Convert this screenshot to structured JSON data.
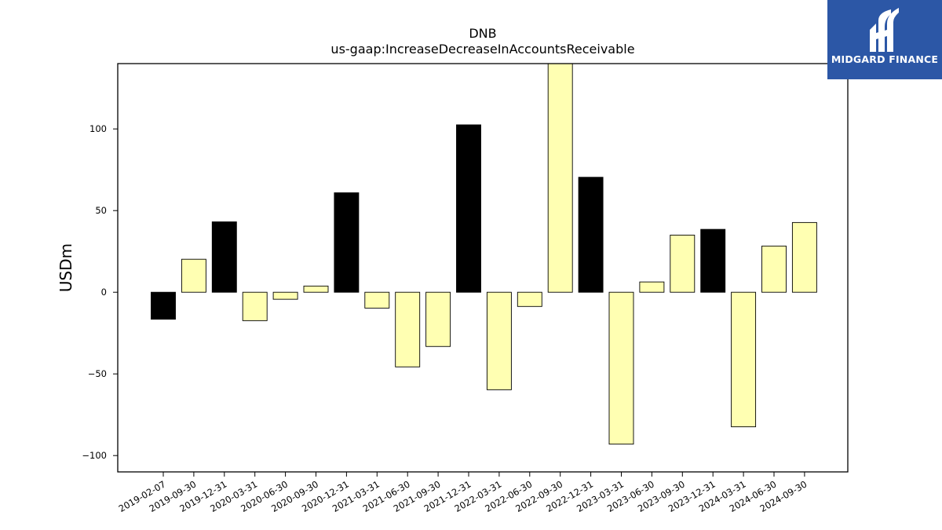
{
  "colors": {
    "positive_highlight": "#000000",
    "regular": "#ffffb2",
    "bar_edge": "#000000",
    "logo_background": "#2c57a6",
    "logo_foreground": "#ffffff"
  },
  "logo": {
    "icon": "midgard-logo-icon",
    "text": "MIDGARD FINANCE"
  },
  "chart_data": {
    "type": "bar",
    "title": "DNB",
    "subtitle": "us-gaap:IncreaseDecreaseInAccountsReceivable",
    "xlabel": "",
    "ylabel": "USDm",
    "ylim": [
      -110,
      140
    ],
    "yticks": [
      -100,
      -50,
      0,
      50,
      100
    ],
    "ytick_labels": [
      "−100",
      "−50",
      "0",
      "50",
      "100"
    ],
    "grid": false,
    "legend": "none",
    "categories": [
      "2019-02-07",
      "2019-09-30",
      "2019-12-31",
      "2020-03-31",
      "2020-06-30",
      "2020-09-30",
      "2020-12-31",
      "2021-03-31",
      "2021-06-30",
      "2021-09-30",
      "2021-12-31",
      "2022-03-31",
      "2022-06-30",
      "2022-09-30",
      "2022-12-31",
      "2023-03-31",
      "2023-06-30",
      "2023-09-30",
      "2023-12-31",
      "2024-03-31",
      "2024-06-30",
      "2024-09-30"
    ],
    "values": [
      -16.5,
      20.2,
      43.1,
      -17.4,
      -4.3,
      3.8,
      60.9,
      -9.7,
      -45.7,
      -33.2,
      102.5,
      -59.7,
      -8.7,
      140,
      70.4,
      -93,
      6.3,
      35,
      38.5,
      -82.4,
      28.3,
      42.7
    ],
    "highlighted": [
      true,
      false,
      true,
      false,
      false,
      false,
      true,
      false,
      false,
      false,
      true,
      false,
      false,
      false,
      true,
      false,
      false,
      false,
      true,
      false,
      false,
      false
    ]
  }
}
